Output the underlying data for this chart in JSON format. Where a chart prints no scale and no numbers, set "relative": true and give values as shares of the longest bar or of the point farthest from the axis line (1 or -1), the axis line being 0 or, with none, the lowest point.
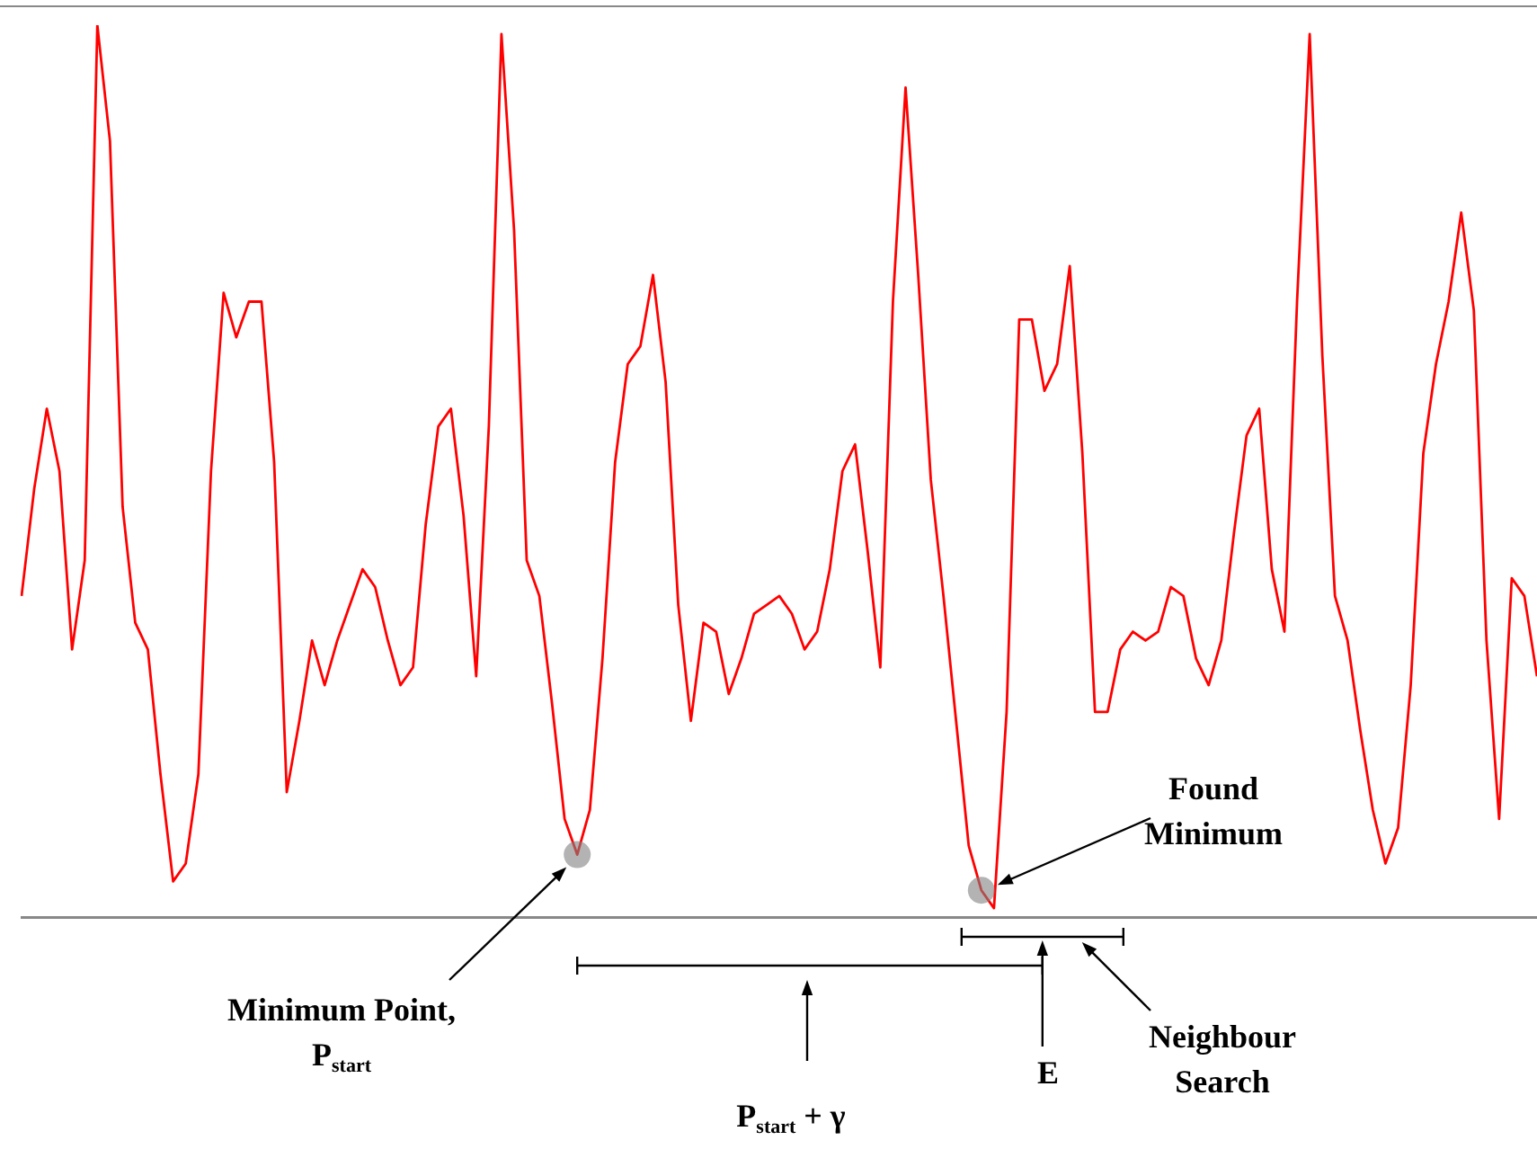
{
  "chart_data": {
    "type": "line",
    "relative": true,
    "color": "#ff0000",
    "categories": [
      null,
      null,
      null,
      null,
      null,
      null,
      null,
      null,
      null,
      null,
      null,
      null,
      null,
      null,
      null,
      null,
      null,
      null,
      null,
      null,
      null,
      null,
      null,
      null,
      null,
      null,
      null,
      null,
      null,
      null,
      null,
      null,
      null,
      null,
      null,
      null,
      null,
      null,
      null,
      null,
      null,
      null,
      null,
      null,
      null,
      null,
      null,
      null,
      null,
      null,
      null,
      null,
      null,
      null,
      null,
      null,
      null,
      null,
      null,
      null,
      null,
      null,
      null,
      null,
      null,
      null,
      null,
      null,
      null,
      null,
      null,
      null,
      null,
      null,
      null,
      null,
      null,
      null,
      null,
      null,
      null,
      null,
      null,
      null,
      null,
      null,
      null,
      null,
      null,
      null,
      null,
      null,
      null,
      null,
      null,
      null,
      null,
      null,
      null,
      null,
      null,
      null,
      null,
      null,
      null,
      null,
      null,
      null,
      null,
      null,
      null,
      null,
      null,
      null,
      null,
      null,
      null,
      null,
      null,
      null,
      null
    ],
    "values": [
      0.36,
      0.48,
      0.57,
      0.5,
      0.3,
      0.4,
      1.0,
      0.87,
      0.46,
      0.33,
      0.3,
      0.16,
      0.04,
      0.06,
      0.16,
      0.5,
      0.7,
      0.65,
      0.69,
      0.69,
      0.51,
      0.14,
      0.22,
      0.31,
      0.26,
      0.31,
      0.35,
      0.39,
      0.37,
      0.31,
      0.26,
      0.28,
      0.44,
      0.55,
      0.57,
      0.45,
      0.27,
      0.55,
      0.99,
      0.77,
      0.4,
      0.36,
      0.24,
      0.11,
      0.07,
      0.12,
      0.29,
      0.51,
      0.62,
      0.64,
      0.72,
      0.6,
      0.35,
      0.22,
      0.33,
      0.32,
      0.25,
      0.29,
      0.34,
      0.35,
      0.36,
      0.34,
      0.3,
      0.32,
      0.39,
      0.5,
      0.53,
      0.41,
      0.28,
      0.69,
      0.93,
      0.72,
      0.49,
      0.36,
      0.22,
      0.08,
      0.03,
      0.01,
      0.23,
      0.67,
      0.67,
      0.59,
      0.62,
      0.73,
      0.52,
      0.23,
      0.23,
      0.3,
      0.32,
      0.31,
      0.32,
      0.37,
      0.36,
      0.29,
      0.26,
      0.31,
      0.43,
      0.54,
      0.57,
      0.39,
      0.32,
      0.69,
      0.99,
      0.63,
      0.36,
      0.31,
      0.21,
      0.12,
      0.06,
      0.1,
      0.26,
      0.52,
      0.62,
      0.69,
      0.79,
      0.68,
      0.31,
      0.11,
      0.38,
      0.36,
      0.27
    ],
    "annotations": [
      "Minimum Point, P$_{start}$",
      "Found Minimum",
      "P$_{start}$ + γ",
      "E",
      "Neighbour Search"
    ]
  }
}
